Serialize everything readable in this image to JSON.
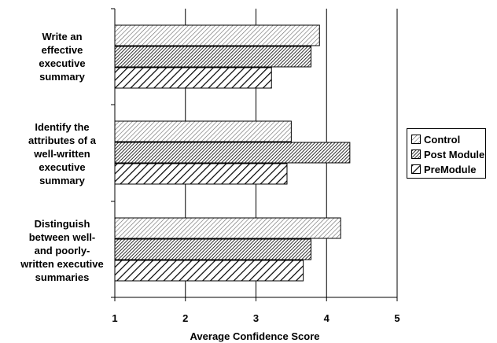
{
  "chart_data": {
    "type": "bar",
    "orientation": "horizontal",
    "categories": [
      "Write an effective executive summary",
      "Identify the attributes of a well-written executive summary",
      "Distinguish between well- and poorly-written executive summaries"
    ],
    "category_label_lines": [
      [
        "Write an",
        "effective",
        "executive",
        "summary"
      ],
      [
        "Identify the",
        "attributes of a",
        "well-written",
        "executive",
        "summary"
      ],
      [
        "Distinguish",
        "between well-",
        "and poorly-",
        "written executive",
        "summaries"
      ]
    ],
    "series": [
      {
        "name": "Control",
        "values": [
          3.9,
          3.5,
          4.2
        ]
      },
      {
        "name": "Post Module",
        "values": [
          3.78,
          4.33,
          3.78
        ]
      },
      {
        "name": "PreModule",
        "values": [
          3.22,
          3.44,
          3.67
        ]
      }
    ],
    "xlabel": "Average Confidence Score",
    "ylabel": "",
    "xlim": [
      1,
      5
    ],
    "x_ticks": [
      "1",
      "2",
      "3",
      "4",
      "5"
    ],
    "grid": "vertical gridlines",
    "legend_position": "right",
    "patterns": {
      "Control": "sparse-diagonal",
      "Post Module": "dense-diagonal",
      "PreModule": "wide-diagonal"
    }
  }
}
